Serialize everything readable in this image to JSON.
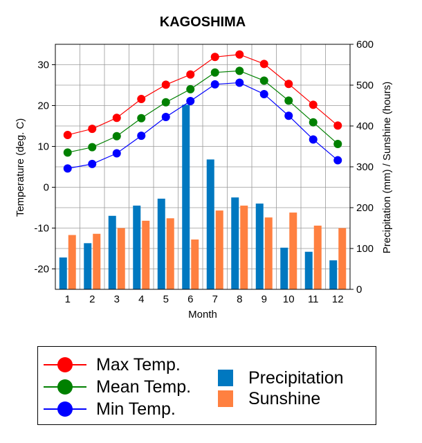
{
  "chart_data": {
    "type": "bar+line",
    "title": "KAGOSHIMA",
    "xlabel": "Month",
    "ylabel_left": "Temperature (deg. C)",
    "ylabel_right": "Precipitation (mm)  /  Sunshine (hours)",
    "categories": [
      "1",
      "2",
      "3",
      "4",
      "5",
      "6",
      "7",
      "8",
      "9",
      "10",
      "11",
      "12"
    ],
    "y_left": {
      "min": -25,
      "max": 35,
      "ticks": [
        -20,
        -10,
        0,
        10,
        20,
        30
      ]
    },
    "y_right": {
      "min": 0,
      "max": 600,
      "ticks": [
        0,
        100,
        200,
        300,
        400,
        500,
        600
      ]
    },
    "grid": true,
    "series": [
      {
        "name": "Max Temp.",
        "kind": "line",
        "axis": "left",
        "color": "#ff0000",
        "values": [
          12.8,
          14.3,
          17.0,
          21.6,
          25.1,
          27.6,
          31.9,
          32.5,
          30.2,
          25.3,
          20.2,
          15.1
        ]
      },
      {
        "name": "Mean Temp.",
        "kind": "line",
        "axis": "left",
        "color": "#008000",
        "values": [
          8.5,
          9.8,
          12.5,
          16.9,
          20.8,
          24.0,
          28.1,
          28.5,
          26.1,
          21.2,
          15.9,
          10.6
        ]
      },
      {
        "name": "Min Temp.",
        "kind": "line",
        "axis": "left",
        "color": "#0000ff",
        "values": [
          4.6,
          5.7,
          8.3,
          12.6,
          17.2,
          21.1,
          25.2,
          25.6,
          22.8,
          17.5,
          11.7,
          6.6
        ]
      },
      {
        "name": "Precipitation",
        "kind": "bar",
        "axis": "right",
        "color": "#0078c0",
        "values": [
          78,
          113,
          180,
          205,
          222,
          452,
          318,
          225,
          210,
          102,
          92,
          71
        ]
      },
      {
        "name": "Sunshine",
        "kind": "bar",
        "axis": "right",
        "color": "#ff8040",
        "values": [
          133,
          136,
          150,
          168,
          174,
          122,
          193,
          205,
          176,
          188,
          156,
          150
        ]
      }
    ],
    "legend": {
      "placement": "bottom",
      "line_items": [
        "Max Temp.",
        "Mean Temp.",
        "Min Temp."
      ],
      "bar_items": [
        "Precipitation",
        "Sunshine"
      ]
    }
  }
}
